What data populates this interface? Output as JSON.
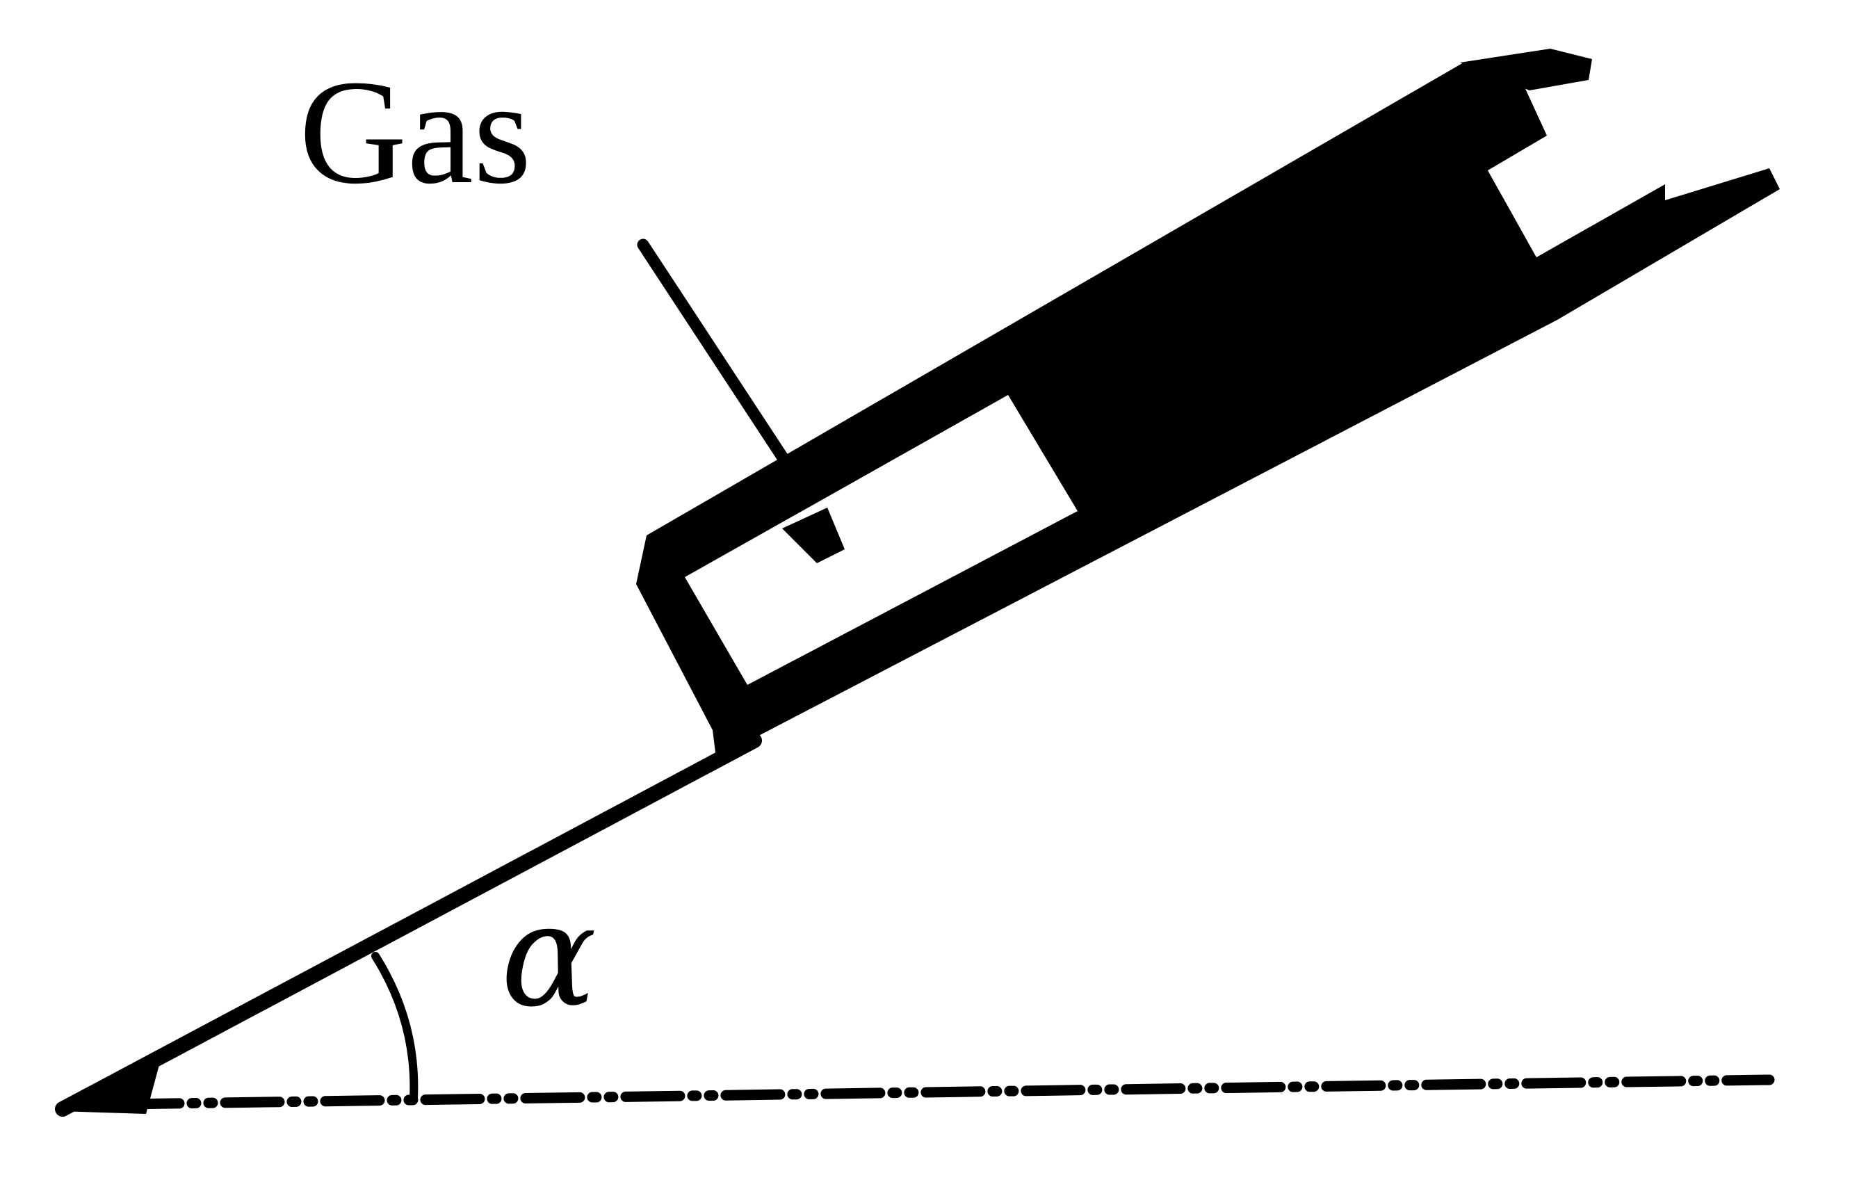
{
  "labels": {
    "gas": "Gas",
    "angle": "α"
  },
  "colors": {
    "ink": "#000000",
    "background": "#ffffff"
  }
}
